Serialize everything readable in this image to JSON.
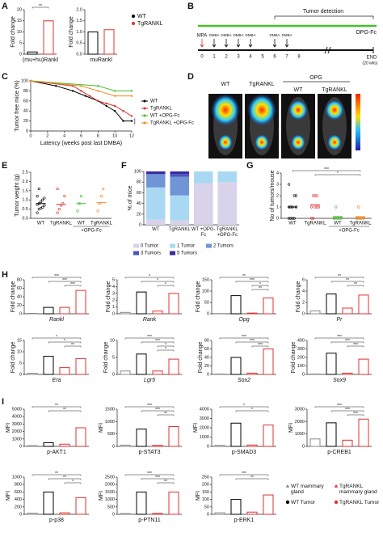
{
  "panels": [
    "A",
    "B",
    "C",
    "D",
    "E",
    "F",
    "G",
    "H",
    "I"
  ],
  "legend_a": [
    {
      "name": "WT",
      "color": "#000000"
    },
    {
      "name": "TgRANKL",
      "color": "#e03030"
    }
  ],
  "diagram": {
    "tumor_detection": "Tumor detection",
    "opg": "OPG-Fc",
    "mpa": "MPA",
    "dmba": [
      "DMBA",
      "DMBA",
      "DMBA",
      "DMBA",
      "DMBA",
      "DMBA"
    ],
    "weeks": [
      0,
      1,
      2,
      3,
      4,
      5,
      6,
      7,
      8
    ],
    "end": "END",
    "end_note": "(20 wks)"
  },
  "images": {
    "labels": [
      "WT",
      "TgRANKL",
      "WT",
      "TgRANKL"
    ],
    "group": "OPG"
  },
  "groups": [
    {
      "name": "WT mammary gland",
      "color": "#888888",
      "marker": "triangle"
    },
    {
      "name": "TgRANKL mammary gland",
      "color": "#e03030",
      "marker": "triangle"
    },
    {
      "name": "WT Tumor",
      "color": "#000000",
      "marker": "circle"
    },
    {
      "name": "TgRANKL Tumor",
      "color": "#e03030",
      "marker": "circle"
    }
  ],
  "group_order": [
    0,
    2,
    1,
    3
  ],
  "chart_data": [
    {
      "type": "bar",
      "ylabel": "Fold change",
      "xlabel": "(mu+hu)Rankl",
      "values": [
        1,
        15
      ],
      "colors": [
        "#000000",
        "#e03030"
      ],
      "ylim": [
        0,
        20
      ],
      "yticks": [
        0,
        5,
        10,
        15,
        20
      ],
      "sig": [
        "**"
      ]
    },
    {
      "type": "bar",
      "ylabel": "Fold change",
      "xlabel": "muRankl",
      "values": [
        1.0,
        1.1
      ],
      "colors": [
        "#000000",
        "#e03030"
      ],
      "ylim": [
        0,
        2
      ],
      "yticks": [
        {
          "value": 0,
          "label": "0.0"
        },
        0.5,
        {
          "value": 1,
          "label": "1.0"
        },
        1.5,
        {
          "value": 2,
          "label": "2.0"
        }
      ]
    },
    {
      "type": "line",
      "ylabel": "Tumor free mice (%)",
      "xlabel": "Latency (weeks post last DMBA)",
      "xlim": [
        0,
        12
      ],
      "xticks": [
        0,
        2,
        4,
        6,
        8,
        10,
        12
      ],
      "ylim": [
        0,
        100
      ],
      "yticks": [
        0,
        20,
        40,
        60,
        80,
        100
      ],
      "annotation": "****",
      "series": [
        {
          "name": "WT",
          "color": "#000000",
          "x": [
            0,
            3,
            5,
            6.5,
            8,
            9,
            10,
            11,
            12
          ],
          "values": [
            100,
            90,
            80,
            70,
            60,
            50,
            40,
            20,
            20
          ]
        },
        {
          "name": "TgRANKL",
          "color": "#e03030",
          "x": [
            0,
            5,
            6,
            7,
            8,
            9,
            10,
            11,
            12
          ],
          "values": [
            100,
            90,
            80,
            70,
            60,
            55,
            50,
            40,
            30
          ]
        },
        {
          "name": "WT +OPG-Fc",
          "color": "#44c02a",
          "x": [
            0,
            8,
            10,
            12
          ],
          "values": [
            100,
            90,
            80,
            80
          ]
        },
        {
          "name": "TgRANKL +OPG-Fc",
          "color": "#f08a1c",
          "x": [
            0,
            6,
            8,
            10,
            12
          ],
          "values": [
            100,
            90,
            80,
            70,
            70
          ]
        }
      ]
    },
    {
      "type": "strip",
      "ylabel": "Tumor weight (g)",
      "categories": [
        "WT",
        "TgRANKL",
        "WT",
        "TgRANKL"
      ],
      "group_label": "+OPG-Fc",
      "colors": [
        "#000000",
        "#e03030",
        "#44c02a",
        "#f08a1c"
      ],
      "ylim": [
        0,
        2.5
      ],
      "yticks": [
        {
          "value": 0,
          "label": "0.0"
        },
        0.5,
        {
          "value": 1,
          "label": "1.0"
        },
        1.5,
        {
          "value": 2,
          "label": "2.0"
        },
        2.5
      ],
      "values": [
        0.8,
        0.75,
        0.8,
        0.85
      ],
      "points": [
        [
          0.3,
          0.5,
          0.55,
          0.6,
          0.7,
          0.75,
          0.8,
          0.9,
          1.0,
          1.1,
          1.2,
          1.6
        ],
        [
          0.3,
          0.5,
          0.7,
          0.8,
          1.2,
          1.6
        ],
        [
          0.4,
          0.8,
          1.2
        ],
        [
          0.4,
          0.8,
          1.2,
          1.6
        ]
      ]
    },
    {
      "type": "stacked_bar",
      "ylabel": "% of mice",
      "categories": [
        "WT",
        "TgRANKL",
        "WT +OPG-Fc",
        "TgRANKL +OPG-Fc"
      ],
      "ylim": [
        0,
        100
      ],
      "yticks": [
        0,
        20,
        40,
        60,
        80,
        100
      ],
      "series": [
        {
          "name": "0 Tumor",
          "color": "#d8d2ea",
          "values": [
            10,
            8,
            78,
            80
          ]
        },
        {
          "name": "1 Tumor",
          "color": "#a9d9f2",
          "values": [
            60,
            47,
            22,
            20
          ]
        },
        {
          "name": "2 Tumors",
          "color": "#6f95d6",
          "values": [
            25,
            35,
            0,
            0
          ]
        },
        {
          "name": "3 Tumors",
          "color": "#4c54c0",
          "values": [
            0,
            5,
            0,
            0
          ]
        },
        {
          "name": "5 Tumors",
          "color": "#3b2aa0",
          "values": [
            5,
            5,
            0,
            0
          ]
        }
      ]
    },
    {
      "type": "strip",
      "ylabel": "No of tumors/mouse",
      "categories": [
        "WT",
        "TgRANKL",
        "WT",
        "TgRANKL"
      ],
      "group_label": "+OPG-Fc",
      "colors": [
        "#000000",
        "#e03030",
        "#44c02a",
        "#f08a1c"
      ],
      "ylim": [
        0,
        4
      ],
      "yticks": [
        0,
        1,
        2,
        3,
        4
      ],
      "sig": [
        "***",
        "*"
      ],
      "values": [
        1.0,
        1.2,
        0.15,
        0.15
      ],
      "points": [
        [
          0,
          0,
          0,
          0,
          1,
          1,
          1,
          1,
          2,
          2,
          3
        ],
        [
          0,
          0,
          1,
          1,
          1,
          1,
          2,
          2,
          2
        ],
        [
          0,
          0,
          0,
          0,
          0,
          0,
          1
        ],
        [
          0,
          0,
          0,
          0,
          0,
          0,
          1
        ]
      ]
    },
    {
      "type": "bar",
      "ylabel": "Fold change",
      "xlabel": "Rankl",
      "italic": true,
      "values": [
        1,
        15,
        15,
        55
      ],
      "ylim": [
        0,
        80
      ],
      "yticks": [
        0,
        20,
        40,
        60,
        80
      ],
      "sig": [
        "***",
        "***",
        "***"
      ]
    },
    {
      "type": "bar",
      "ylabel": "Fold change",
      "xlabel": "Rank",
      "italic": true,
      "values": [
        0.2,
        3.2,
        0.4,
        3.0
      ],
      "ylim": [
        0,
        5
      ],
      "yticks": [
        0,
        1,
        2,
        3,
        4,
        5
      ],
      "sig": [
        "*",
        "*",
        "*"
      ]
    },
    {
      "type": "bar",
      "ylabel": "Fold change",
      "xlabel": "Opg",
      "italic": true,
      "values": [
        1,
        80,
        3,
        70
      ],
      "ylim": [
        0,
        150
      ],
      "yticks": [
        0,
        50,
        100,
        150
      ],
      "sig": [
        "**",
        "***",
        "*",
        "**"
      ]
    },
    {
      "type": "bar",
      "ylabel": "Fold change",
      "xlabel": "Pr",
      "italic": true,
      "values": [
        0.5,
        3.5,
        1,
        3.3
      ],
      "ylim": [
        0,
        6
      ],
      "yticks": [
        0,
        2,
        4,
        6
      ],
      "sig": [
        "**",
        "**",
        "**"
      ]
    },
    {
      "type": "bar",
      "ylabel": "Fold change",
      "xlabel": "Era",
      "italic": true,
      "values": [
        0.5,
        8,
        3,
        7
      ],
      "ylim": [
        0,
        15
      ],
      "yticks": [
        0,
        5,
        10,
        15
      ],
      "sig": [
        "*",
        "*",
        "**"
      ]
    },
    {
      "type": "bar",
      "ylabel": "Fold change",
      "xlabel": "Lgr5",
      "italic": true,
      "values": [
        1,
        6,
        1,
        4.5
      ],
      "ylim": [
        0,
        10
      ],
      "yticks": [
        0,
        5,
        10
      ],
      "sig": [
        "***",
        "***",
        "*",
        "*"
      ]
    },
    {
      "type": "bar",
      "ylabel": "Fold change",
      "xlabel": "Sox2",
      "italic": true,
      "values": [
        1,
        40,
        3,
        60
      ],
      "ylim": [
        0,
        80
      ],
      "yticks": [
        0,
        20,
        40,
        60,
        80
      ],
      "sig": [
        "***",
        "***",
        "***"
      ]
    },
    {
      "type": "bar",
      "ylabel": "Fold change",
      "xlabel": "Sox9",
      "italic": true,
      "values": [
        5,
        250,
        15,
        180
      ],
      "ylim": [
        0,
        400
      ],
      "yticks": [
        0,
        100,
        200,
        300,
        400
      ],
      "sig": [
        "***",
        "***",
        "***"
      ]
    },
    {
      "type": "bar",
      "ylabel": "MFI",
      "xlabel": "p-AKT1",
      "values": [
        100,
        500,
        300,
        2500
      ],
      "ylim": [
        0,
        5000
      ],
      "yticks": [
        0,
        1000,
        2000,
        3000,
        4000,
        5000
      ],
      "sig": [
        "**",
        "**"
      ]
    },
    {
      "type": "bar",
      "ylabel": "MFI",
      "xlabel": "p-STAT3",
      "values": [
        50,
        700,
        40,
        800
      ],
      "ylim": [
        0,
        1500
      ],
      "yticks": [
        0,
        500,
        1000,
        1500
      ],
      "sig": [
        "***",
        "***",
        "**"
      ]
    },
    {
      "type": "bar",
      "ylabel": "MFI",
      "xlabel": "p-SMAD3",
      "values": [
        100,
        2500,
        150,
        2300
      ],
      "ylim": [
        0,
        4000
      ],
      "yticks": [
        0,
        1000,
        2000,
        3000,
        4000
      ],
      "sig": [
        "*",
        "*"
      ]
    },
    {
      "type": "bar",
      "ylabel": "MFI",
      "xlabel": "p-CREB1",
      "values": [
        600,
        1900,
        500,
        2200
      ],
      "ylim": [
        0,
        3000
      ],
      "yticks": [
        0,
        1000,
        2000,
        3000
      ],
      "sig": [
        "***",
        "***",
        "***"
      ]
    },
    {
      "type": "bar",
      "ylabel": "MFI",
      "xlabel": "p-p38",
      "values": [
        30,
        600,
        40,
        450
      ],
      "ylim": [
        0,
        1000
      ],
      "yticks": [
        0,
        200,
        400,
        600,
        800,
        1000
      ],
      "sig": [
        "**",
        "**",
        "*"
      ]
    },
    {
      "type": "bar",
      "ylabel": "MFI",
      "xlabel": "p-PTN11",
      "values": [
        50,
        1500,
        60,
        1500
      ],
      "ylim": [
        0,
        2500
      ],
      "yticks": [
        0,
        500,
        1000,
        1500,
        2000,
        2500
      ],
      "sig": [
        "***",
        "***",
        "**"
      ]
    },
    {
      "type": "bar",
      "ylabel": "MFI",
      "xlabel": "p-ERK1",
      "values": [
        10,
        100,
        15,
        130
      ],
      "ylim": [
        0,
        250
      ],
      "yticks": [
        0,
        50,
        100,
        150,
        200,
        250
      ],
      "sig": [
        "***",
        "**"
      ]
    }
  ]
}
